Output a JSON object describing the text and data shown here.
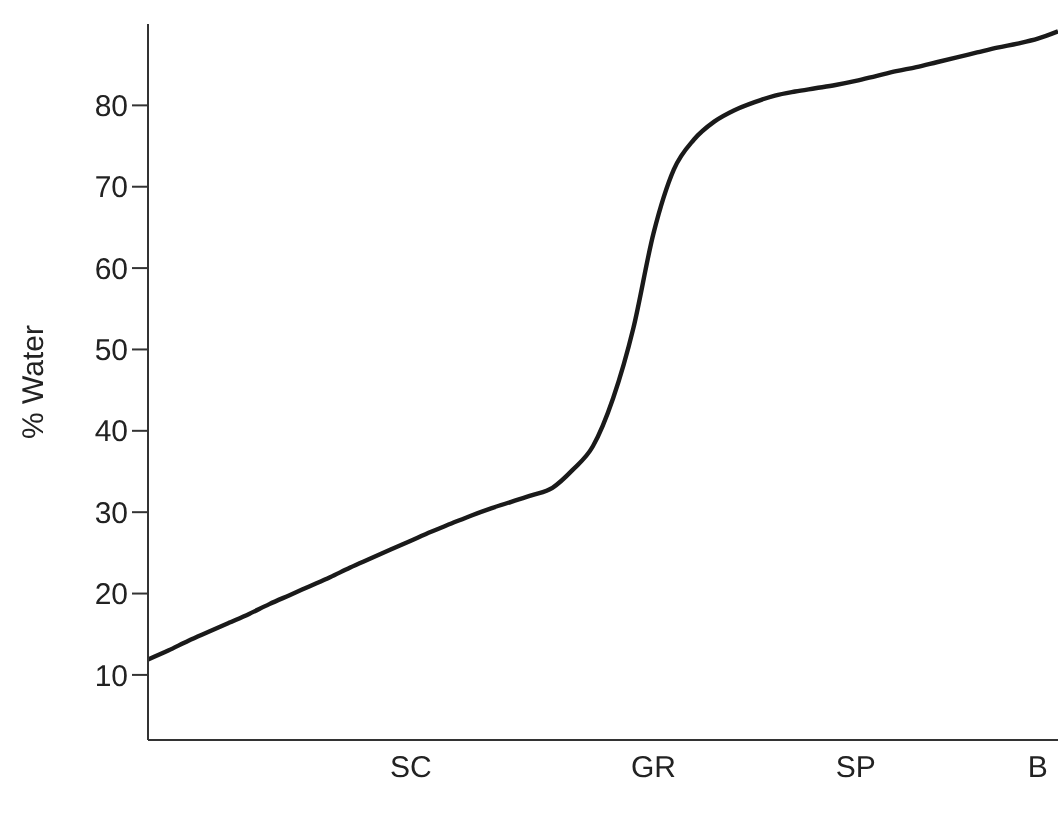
{
  "chart_data": {
    "type": "line",
    "ylabel": "% Water",
    "categories": [
      null,
      null,
      null,
      null,
      null,
      null,
      null,
      null,
      null,
      null,
      null,
      null,
      null,
      "SC",
      null,
      null,
      null,
      null,
      null,
      null,
      null,
      null,
      null,
      null,
      null,
      "GR",
      null,
      null,
      null,
      null,
      null,
      null,
      null,
      null,
      null,
      "SP",
      null,
      null,
      null,
      null,
      null,
      null,
      null,
      null,
      "B",
      null
    ],
    "series": [
      {
        "color": "#1a1a1a",
        "values": [
          11.9,
          13.0,
          14.2,
          15.3,
          16.4,
          17.5,
          18.7,
          19.8,
          20.9,
          22.0,
          23.2,
          24.3,
          25.4,
          26.5,
          27.6,
          28.6,
          29.6,
          30.5,
          31.3,
          32.1,
          33.0,
          35.2,
          38.1,
          44.0,
          52.6,
          64.3,
          72.1,
          75.8,
          78.0,
          79.4,
          80.4,
          81.2,
          81.7,
          82.1,
          82.5,
          83.0,
          83.6,
          84.2,
          84.7,
          85.3,
          85.9,
          86.5,
          87.1,
          87.6,
          88.2,
          89.1
        ]
      }
    ],
    "ylim": [
      2,
      90
    ],
    "yticks": [
      10,
      20,
      30,
      40,
      50,
      60,
      70,
      80
    ],
    "grid": false,
    "legend": false,
    "marker": "none",
    "line_style": "solid"
  }
}
